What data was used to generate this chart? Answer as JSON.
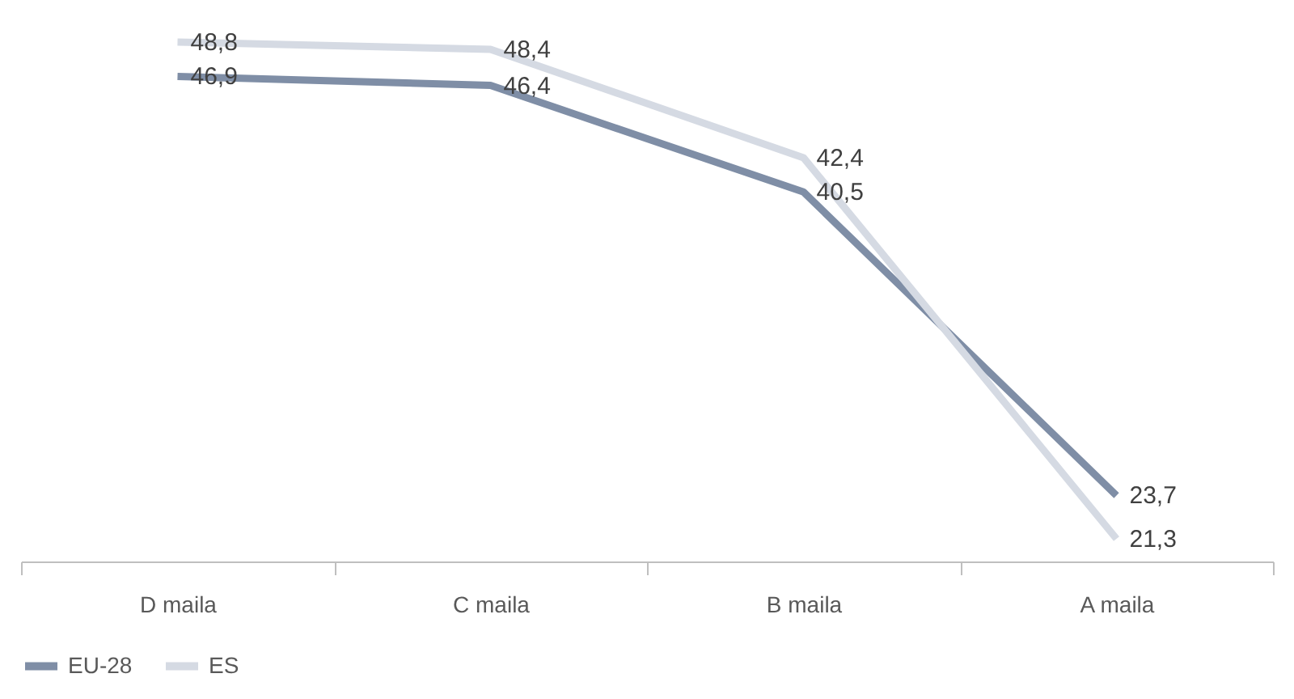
{
  "chart_data": {
    "type": "line",
    "categories": [
      "D maila",
      "C maila",
      "B maila",
      "A maila"
    ],
    "series": [
      {
        "name": "EU-28",
        "color": "#7f8ea6",
        "values": [
          46.9,
          46.4,
          40.5,
          23.7
        ],
        "value_labels": [
          "46,9",
          "46,4",
          "40,5",
          "23,7"
        ]
      },
      {
        "name": "ES",
        "color": "#d5dae3",
        "values": [
          48.8,
          48.4,
          42.4,
          21.3
        ],
        "value_labels": [
          "48,8",
          "48,4",
          "42,4",
          "21,3"
        ]
      }
    ],
    "tick_labels": "x",
    "grid": false,
    "legend": "bottom"
  }
}
